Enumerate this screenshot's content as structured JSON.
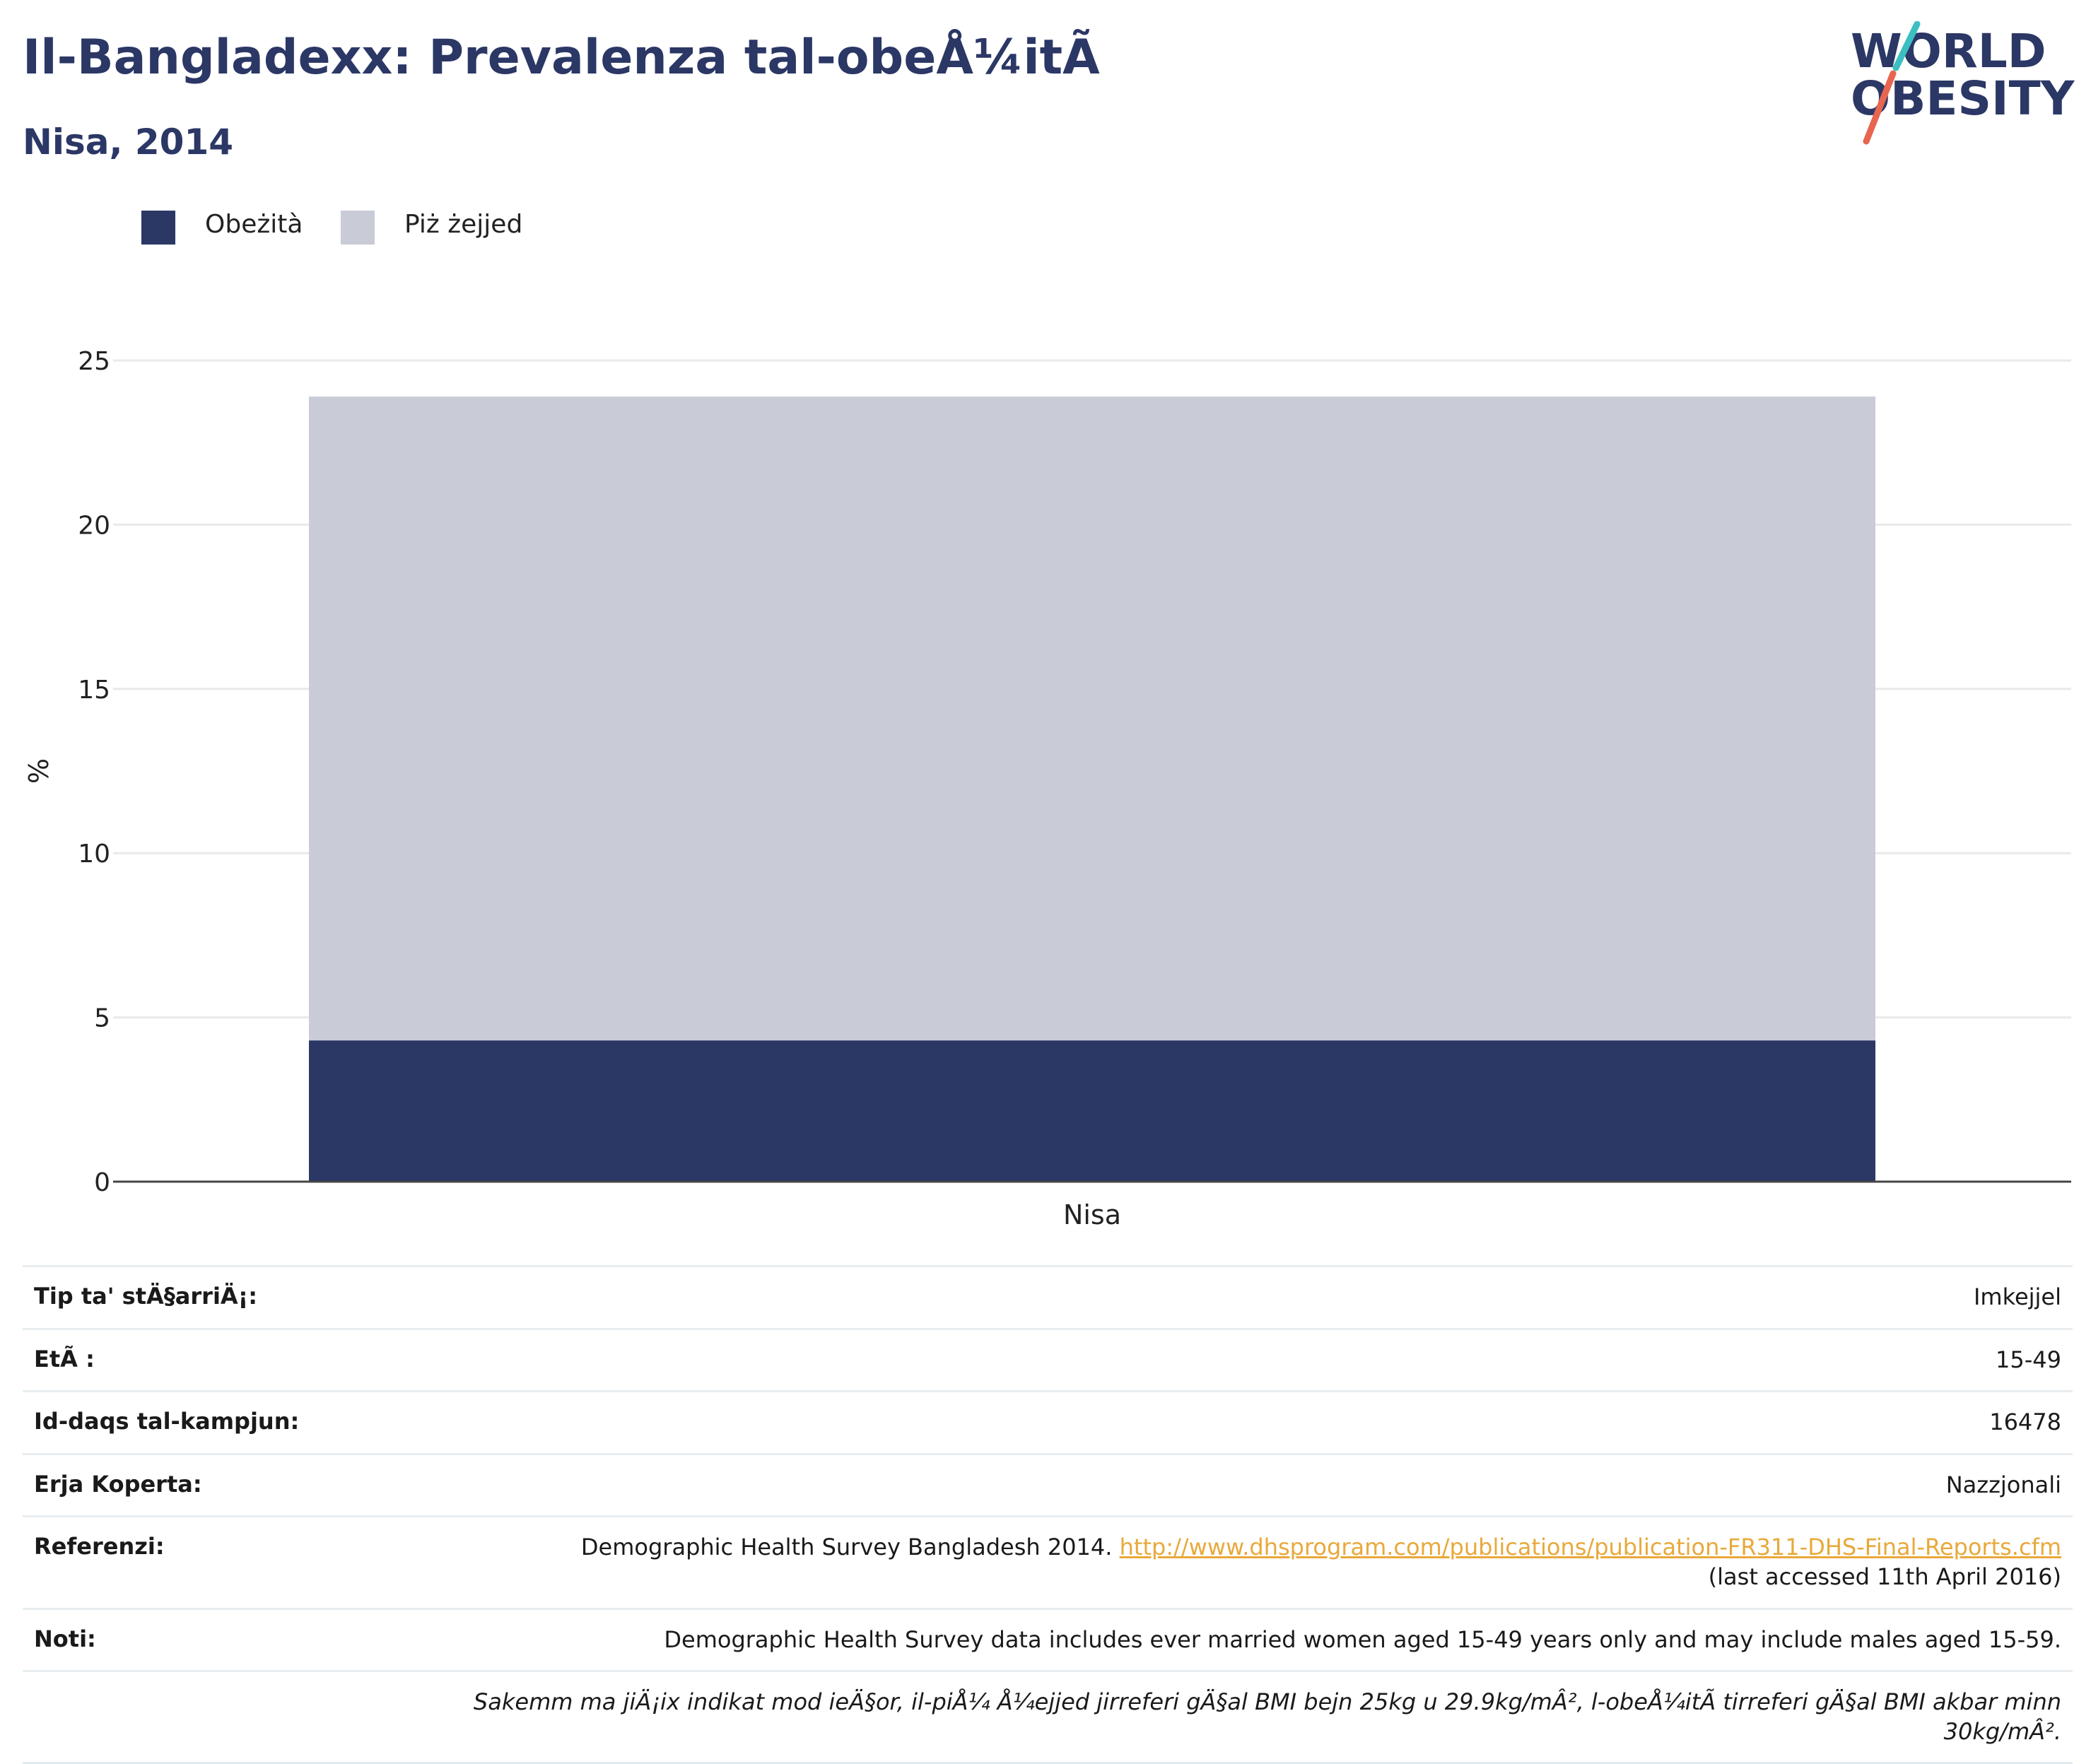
{
  "header": {
    "title": "Il-Bangladexx: Prevalenza tal-obeÅ¼itÃ",
    "subtitle": "Nisa, 2014"
  },
  "logo": {
    "line1": "WORLD",
    "line2": "OBESITY"
  },
  "colors": {
    "obesity": "#2b3765",
    "overweight": "#c9ccd7",
    "accent": "#e8a93b",
    "title": "#2b3765"
  },
  "legend": [
    {
      "label": "Obeżità",
      "color": "#2b3765"
    },
    {
      "label": "Piż żejjed",
      "color": "#c9ccd7"
    }
  ],
  "chart_data": {
    "type": "bar",
    "stacked": true,
    "categories": [
      "Nisa"
    ],
    "series": [
      {
        "name": "Obeżità",
        "values": [
          4.3
        ]
      },
      {
        "name": "Piż żejjed",
        "values": [
          19.6
        ]
      }
    ],
    "ylabel": "%",
    "ylim": [
      0,
      25
    ],
    "yticks": [
      0,
      5,
      10,
      15,
      20,
      25
    ],
    "grid": true,
    "legend_position": "top-left"
  },
  "info": {
    "survey_type": {
      "label": "Tip ta' stÄ§arriÄ¡:",
      "value": "Imkejjel"
    },
    "age": {
      "label": "EtÃ :",
      "value": "15-49"
    },
    "sample_size": {
      "label": "Id-daqs tal-kampjun:",
      "value": "16478"
    },
    "area": {
      "label": "Erja Koperta:",
      "value": "Nazzjonali"
    },
    "references": {
      "label": "Referenzi:",
      "text": "Demographic Health Survey Bangladesh 2014.",
      "link": "http://www.dhsprogram.com/publications/publication-FR311-DHS-Final-Reports.cfm",
      "accessed": "(last accessed 11th April 2016)"
    },
    "notes": {
      "label": "Noti:",
      "text": "Demographic Health Survey data includes ever married women aged 15-49 years only and may include males aged 15-59.",
      "definition": "Sakemm ma jiÄ¡ix indikat mod ieÄ§or, il-piÅ¼ Å¼ejjed jirreferi gÄ§al BMI bejn 25kg u 29.9kg/mÂ², l-obeÅ¼itÃ  tirreferi gÄ§al BMI akbar minn 30kg/mÂ²."
    }
  }
}
